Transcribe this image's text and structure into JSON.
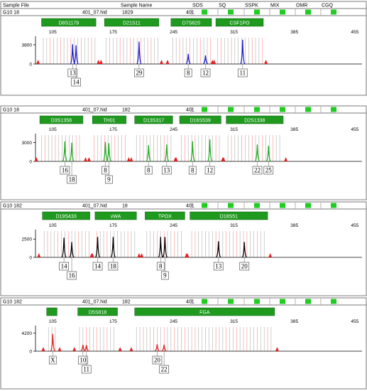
{
  "header": {
    "sample_file_label": "Sample File",
    "sample_name_label": "Sample Name",
    "flags": [
      "SOS",
      "SQ",
      "SSPK",
      "MIX",
      "OMR",
      "CGQ"
    ]
  },
  "x_ticks": [
    105,
    175,
    245,
    315,
    385,
    455
  ],
  "colors": {
    "blue": "#1a1acc",
    "green": "#22aa22",
    "black": "#000000",
    "red": "#e02020",
    "flag": "#22cc22",
    "locus": "#1f9a1f"
  },
  "chart_data": [
    {
      "type": "line",
      "panel": "blue",
      "sample_row": {
        "well": "G10  18",
        "file": "401_07.hid",
        "name": "1829",
        "extra": "401"
      },
      "xlim": [
        85,
        465
      ],
      "y_ticks": [
        0,
        3800
      ],
      "ylim": [
        0,
        5200
      ],
      "loci": [
        {
          "name": "D8S1179",
          "start": 92,
          "end": 155
        },
        {
          "name": "D21S11",
          "start": 165,
          "end": 228
        },
        {
          "name": "D7S820",
          "start": 242,
          "end": 289
        },
        {
          "name": "CSF1PO",
          "start": 294,
          "end": 349
        }
      ],
      "peaks": [
        {
          "allele": "13",
          "size": 128,
          "height": 3900
        },
        {
          "allele": "14",
          "size": 132,
          "height": 3700
        },
        {
          "allele": "29",
          "size": 205,
          "height": 4400
        },
        {
          "allele": "8",
          "size": 262,
          "height": 2000
        },
        {
          "allele": "12",
          "size": 282,
          "height": 1700
        },
        {
          "allele": "11",
          "size": 325,
          "height": 4800
        }
      ]
    },
    {
      "type": "line",
      "panel": "green",
      "sample_row": {
        "well": "G10  18",
        "file": "401_07.hid",
        "name": "182",
        "extra": "401"
      },
      "xlim": [
        85,
        465
      ],
      "y_ticks": [
        0,
        3000
      ],
      "ylim": [
        0,
        4200
      ],
      "loci": [
        {
          "name": "D3S1358",
          "start": 90,
          "end": 140
        },
        {
          "name": "TH01",
          "start": 151,
          "end": 190
        },
        {
          "name": "D13S317",
          "start": 200,
          "end": 244
        },
        {
          "name": "D16S539",
          "start": 252,
          "end": 300
        },
        {
          "name": "D2S1338",
          "start": 306,
          "end": 372
        }
      ],
      "peaks": [
        {
          "allele": "16",
          "size": 119,
          "height": 3200
        },
        {
          "allele": "18",
          "size": 127,
          "height": 3000
        },
        {
          "allele": "8",
          "size": 166,
          "height": 3100
        },
        {
          "allele": "9",
          "size": 170,
          "height": 2900
        },
        {
          "allele": "8",
          "size": 216,
          "height": 2600
        },
        {
          "allele": "13",
          "size": 237,
          "height": 2700
        },
        {
          "allele": "8",
          "size": 267,
          "height": 3200
        },
        {
          "allele": "12",
          "size": 287,
          "height": 3500
        },
        {
          "allele": "22",
          "size": 342,
          "height": 2700
        },
        {
          "allele": "25",
          "size": 355,
          "height": 2500
        }
      ]
    },
    {
      "type": "line",
      "panel": "black",
      "sample_row": {
        "well": "G10  182",
        "file": "401_07.hid",
        "name": "18",
        "extra": "401"
      },
      "xlim": [
        85,
        465
      ],
      "y_ticks": [
        0,
        2500
      ],
      "ylim": [
        0,
        3600
      ],
      "loci": [
        {
          "name": "D19S433",
          "start": 93,
          "end": 148
        },
        {
          "name": "vWA",
          "start": 154,
          "end": 202
        },
        {
          "name": "TPOX",
          "start": 212,
          "end": 258
        },
        {
          "name": "D18S51",
          "start": 264,
          "end": 354
        }
      ],
      "peaks": [
        {
          "allele": "14",
          "size": 118,
          "height": 2700
        },
        {
          "allele": "16",
          "size": 127,
          "height": 2100
        },
        {
          "allele": "14",
          "size": 157,
          "height": 2800
        },
        {
          "allele": "18",
          "size": 175,
          "height": 2800
        },
        {
          "allele": "8",
          "size": 230,
          "height": 2800
        },
        {
          "allele": "9",
          "size": 235,
          "height": 2800
        },
        {
          "allele": "13",
          "size": 297,
          "height": 2200
        },
        {
          "allele": "20",
          "size": 327,
          "height": 2100
        }
      ]
    },
    {
      "type": "line",
      "panel": "red",
      "sample_row": {
        "well": "G10  182",
        "file": "401_07.hid",
        "name": "182",
        "extra": "401"
      },
      "xlim": [
        85,
        465
      ],
      "y_ticks": [
        0,
        4200
      ],
      "ylim": [
        0,
        5600
      ],
      "loci": [
        {
          "name": "",
          "start": 98,
          "end": 110
        },
        {
          "name": "D5S818",
          "start": 134,
          "end": 180
        },
        {
          "name": "FGA",
          "start": 200,
          "end": 362
        }
      ],
      "peaks": [
        {
          "allele": "X",
          "size": 105,
          "height": 4000
        },
        {
          "allele": "10",
          "size": 140,
          "height": 1500
        },
        {
          "allele": "11",
          "size": 144,
          "height": 1400
        },
        {
          "allele": "20",
          "size": 226,
          "height": 1600
        },
        {
          "allele": "22",
          "size": 234,
          "height": 1500
        }
      ]
    }
  ]
}
